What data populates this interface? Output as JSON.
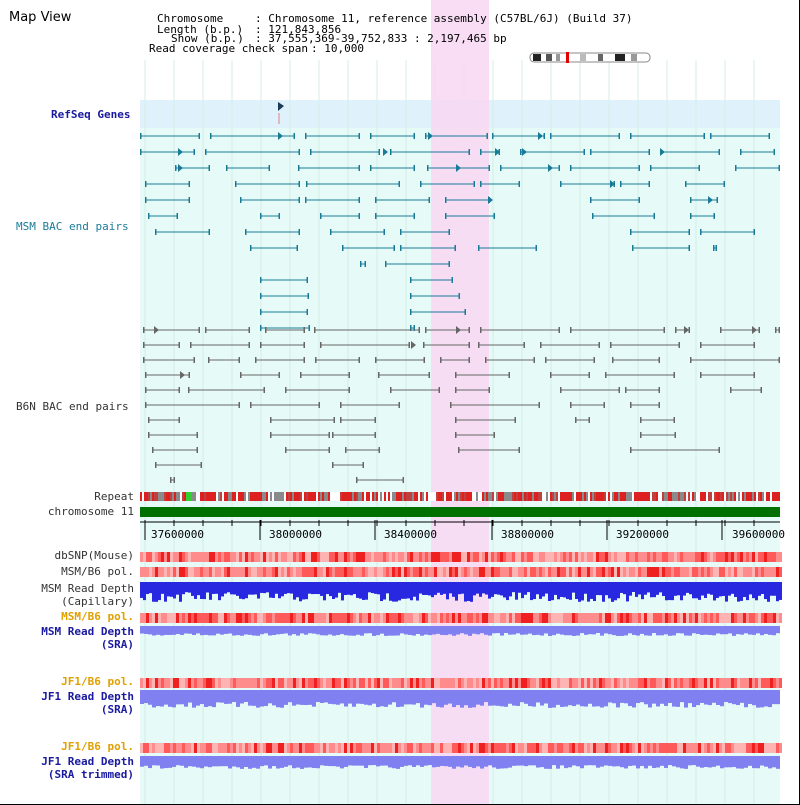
{
  "title": "Map View",
  "header": {
    "chromosome_label": "Chromosome",
    "chromosome_value": ": Chromosome 11, reference assembly (C57BL/6J) (Build 37)",
    "length_label": "Length (b.p.)",
    "length_value": ": 121,843,856",
    "show_label": "Show (b.p.)",
    "show_value": ": 37,555,369-39,752,833 : 2,197,465 bp",
    "span_label": "Read coverage check span",
    "span_value": ": 10,000"
  },
  "tracks": {
    "refseq": "RefSeq Genes",
    "msm_bac": "MSM BAC end pairs",
    "b6n_bac": "B6N BAC end pairs",
    "repeat": "Repeat",
    "chromosome": "chromosome 11",
    "dbsnp": "dbSNP(Mouse)",
    "msm_b6_pol_1": "MSM/B6 pol.",
    "msm_depth_cap_1": "MSM Read Depth",
    "msm_depth_cap_2": "(Capillary)",
    "msm_b6_pol_2": "MSM/B6 pol.",
    "msm_depth_sra_1": "MSM Read Depth",
    "msm_depth_sra_2": "(SRA)",
    "jf1_b6_pol_1": "JF1/B6 pol.",
    "jf1_depth_sra_1": "JF1 Read Depth",
    "jf1_depth_sra_2": "(SRA)",
    "jf1_b6_pol_2": "JF1/B6 pol.",
    "jf1_depth_trim_1": "JF1 Read Depth",
    "jf1_depth_trim_2": "(SRA trimmed)"
  },
  "axis_ticks": [
    "37600000",
    "38000000",
    "38400000",
    "38800000",
    "39200000",
    "39600000"
  ],
  "colors": {
    "highlight": "#f7d9f3",
    "refseq_bg": "#dff1fb",
    "track_bg": "#e6fbf7",
    "teal": "#1a7b98",
    "gray": "#666666",
    "chromosome": "#007000",
    "snp_red": "#ff6060",
    "depth_blue": "#2828e0",
    "depth_light": "#8080f0"
  }
}
